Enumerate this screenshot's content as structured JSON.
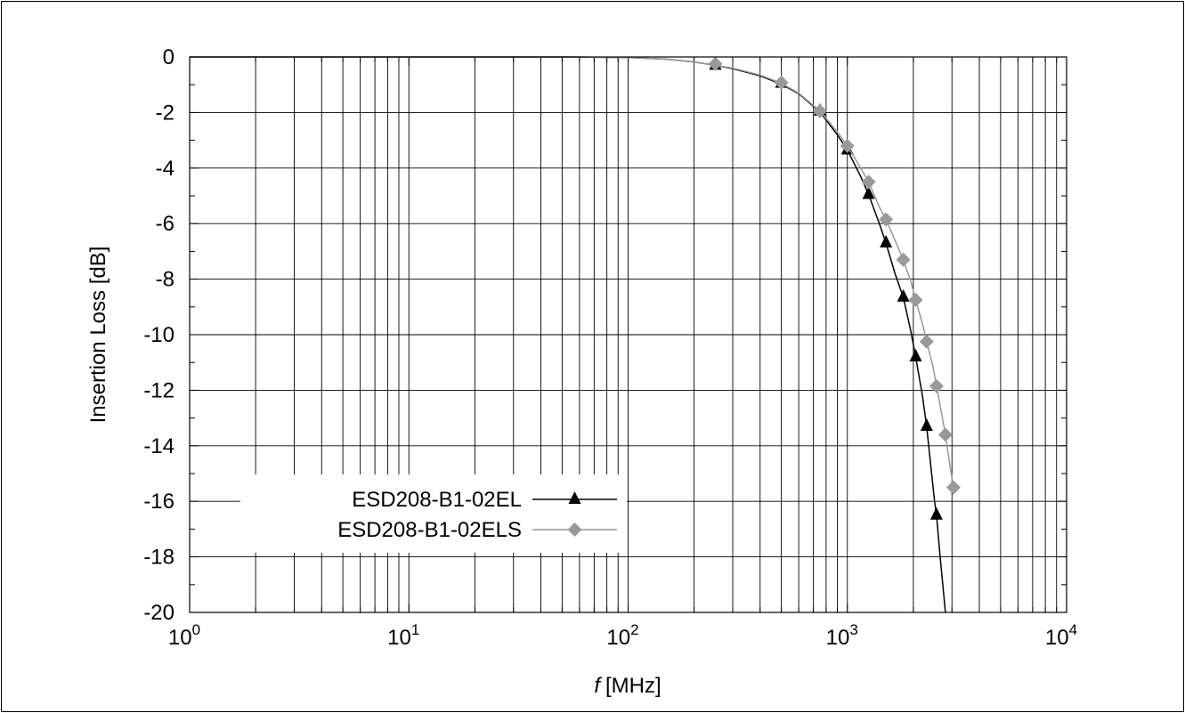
{
  "chart_data": {
    "type": "line",
    "title": "",
    "xlabel": "[MHz]",
    "xlabel_italic_symbol": "f",
    "ylabel": "Insertion Loss [dB]",
    "x_scale": "log",
    "xlim": [
      1,
      10000
    ],
    "ylim": [
      -20,
      0
    ],
    "x_ticks": [
      {
        "base": "10",
        "exp": "0",
        "value": 1
      },
      {
        "base": "10",
        "exp": "1",
        "value": 10
      },
      {
        "base": "10",
        "exp": "2",
        "value": 100
      },
      {
        "base": "10",
        "exp": "3",
        "value": 1000
      },
      {
        "base": "10",
        "exp": "4",
        "value": 10000
      }
    ],
    "y_ticks": [
      "0",
      "-2",
      "-4",
      "-6",
      "-8",
      "-10",
      "-12",
      "-14",
      "-16",
      "-18",
      "-20"
    ],
    "grid": true,
    "legend_position": "bottom-left",
    "series": [
      {
        "name": "ESD208-B1-02EL",
        "color": "#000000",
        "marker": "triangle",
        "curve": [
          [
            1,
            0
          ],
          [
            50,
            0
          ],
          [
            100,
            -0.02
          ],
          [
            150,
            -0.08
          ],
          [
            200,
            -0.18
          ],
          [
            250,
            -0.3
          ],
          [
            300,
            -0.42
          ],
          [
            400,
            -0.68
          ],
          [
            500,
            -0.98
          ],
          [
            600,
            -1.32
          ],
          [
            750,
            -1.98
          ],
          [
            900,
            -2.8
          ],
          [
            1000,
            -3.35
          ],
          [
            1150,
            -4.3
          ],
          [
            1250,
            -4.95
          ],
          [
            1400,
            -6.0
          ],
          [
            1500,
            -6.7
          ],
          [
            1650,
            -7.8
          ],
          [
            1800,
            -8.65
          ],
          [
            1950,
            -9.9
          ],
          [
            2050,
            -10.8
          ],
          [
            2200,
            -12.2
          ],
          [
            2300,
            -13.3
          ],
          [
            2400,
            -14.7
          ],
          [
            2500,
            -16.0
          ],
          [
            2550,
            -16.5
          ],
          [
            2650,
            -18.0
          ],
          [
            2800,
            -20.0
          ]
        ],
        "markers": [
          [
            250,
            -0.3
          ],
          [
            500,
            -0.95
          ],
          [
            750,
            -1.95
          ],
          [
            1000,
            -3.35
          ],
          [
            1250,
            -4.95
          ],
          [
            1500,
            -6.7
          ],
          [
            1800,
            -8.65
          ],
          [
            2050,
            -10.8
          ],
          [
            2300,
            -13.3
          ],
          [
            2550,
            -16.5
          ]
        ]
      },
      {
        "name": "ESD208-B1-02ELS",
        "color": "#999999",
        "marker": "diamond",
        "curve": [
          [
            1,
            0
          ],
          [
            50,
            0
          ],
          [
            100,
            -0.02
          ],
          [
            150,
            -0.08
          ],
          [
            200,
            -0.18
          ],
          [
            250,
            -0.3
          ],
          [
            300,
            -0.4
          ],
          [
            400,
            -0.65
          ],
          [
            500,
            -0.95
          ],
          [
            600,
            -1.3
          ],
          [
            750,
            -1.95
          ],
          [
            900,
            -2.7
          ],
          [
            1000,
            -3.2
          ],
          [
            1150,
            -4.0
          ],
          [
            1250,
            -4.5
          ],
          [
            1400,
            -5.4
          ],
          [
            1500,
            -5.85
          ],
          [
            1650,
            -6.6
          ],
          [
            1800,
            -7.3
          ],
          [
            1950,
            -8.1
          ],
          [
            2050,
            -8.75
          ],
          [
            2200,
            -9.6
          ],
          [
            2300,
            -10.25
          ],
          [
            2450,
            -11.1
          ],
          [
            2550,
            -11.85
          ],
          [
            2700,
            -12.9
          ],
          [
            2800,
            -13.6
          ],
          [
            2950,
            -14.8
          ],
          [
            3050,
            -15.5
          ]
        ],
        "markers": [
          [
            250,
            -0.25
          ],
          [
            500,
            -0.92
          ],
          [
            750,
            -1.95
          ],
          [
            1000,
            -3.2
          ],
          [
            1250,
            -4.5
          ],
          [
            1500,
            -5.85
          ],
          [
            1800,
            -7.3
          ],
          [
            2050,
            -8.75
          ],
          [
            2300,
            -10.25
          ],
          [
            2550,
            -11.85
          ],
          [
            2800,
            -13.6
          ],
          [
            3050,
            -15.5
          ]
        ]
      }
    ]
  }
}
